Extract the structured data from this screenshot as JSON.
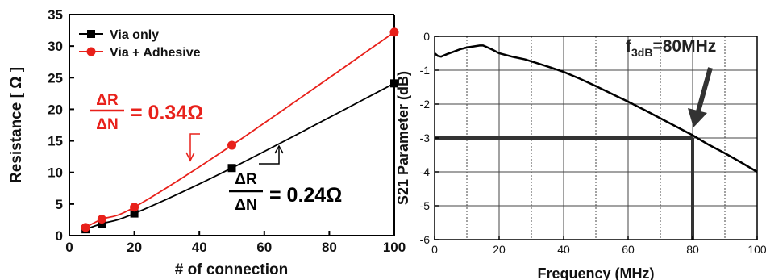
{
  "chart_data": [
    {
      "type": "line",
      "xlabel": "# of connection",
      "ylabel": "Resistance [ Ω ]",
      "xlim": [
        0,
        100
      ],
      "ylim": [
        0,
        35
      ],
      "xticks": [
        "0",
        "20",
        "40",
        "60",
        "80",
        "100"
      ],
      "yticks": [
        "0",
        "5",
        "10",
        "15",
        "20",
        "25",
        "30",
        "35"
      ],
      "grid": false,
      "legend_position": "top-left",
      "series": [
        {
          "name": "Via only",
          "color": "#000000",
          "marker": "square",
          "x": [
            5,
            10,
            20,
            50,
            100
          ],
          "y": [
            1.0,
            1.9,
            3.5,
            10.7,
            24.1
          ]
        },
        {
          "name": "Via + Adhesive",
          "color": "#e8201a",
          "marker": "circle",
          "x": [
            5,
            10,
            20,
            50,
            100
          ],
          "y": [
            1.3,
            2.6,
            4.5,
            14.3,
            32.2
          ]
        }
      ],
      "annotations": {
        "red": {
          "num": "ΔR",
          "den": "ΔN",
          "value": "= 0.34Ω",
          "color": "#e8201a"
        },
        "black": {
          "num": "ΔR",
          "den": "ΔN",
          "value": "= 0.24Ω",
          "color": "#000000"
        }
      }
    },
    {
      "type": "line",
      "xlabel": "Frequency (MHz)",
      "ylabel": "S21 Parameter (dB)",
      "xlim": [
        0,
        100
      ],
      "ylim": [
        -6,
        0
      ],
      "xticks": [
        "0",
        "20",
        "40",
        "60",
        "80",
        "100"
      ],
      "yticks": [
        "0",
        "-1",
        "-2",
        "-3",
        "-4",
        "-5",
        "-6"
      ],
      "grid": true,
      "series": [
        {
          "color": "#000000",
          "x": [
            0,
            1,
            2,
            4,
            6,
            8,
            10,
            12,
            14,
            15,
            16,
            18,
            20,
            24,
            28,
            32,
            36,
            40,
            45,
            50,
            55,
            60,
            65,
            70,
            75,
            80,
            85,
            90,
            95,
            100
          ],
          "y": [
            -0.5,
            -0.58,
            -0.6,
            -0.52,
            -0.45,
            -0.38,
            -0.33,
            -0.3,
            -0.27,
            -0.27,
            -0.31,
            -0.4,
            -0.5,
            -0.6,
            -0.68,
            -0.8,
            -0.92,
            -1.05,
            -1.25,
            -1.47,
            -1.7,
            -1.93,
            -2.17,
            -2.42,
            -2.67,
            -2.92,
            -3.2,
            -3.45,
            -3.72,
            -4.0
          ]
        }
      ],
      "annotation": {
        "f": "f",
        "sub": "3dB",
        "value": "=80MHz"
      },
      "marker_lines": {
        "x": 80,
        "y": -3
      }
    }
  ]
}
